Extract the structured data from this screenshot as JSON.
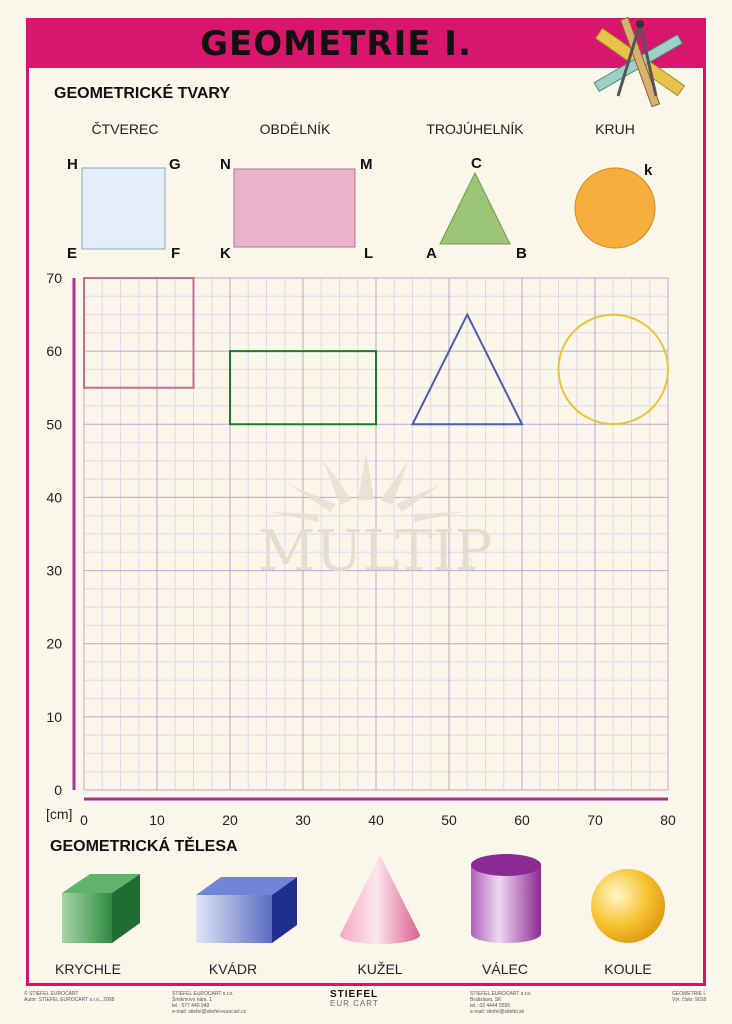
{
  "title": "GEOMETRIE I.",
  "shapes_heading": "GEOMETRICKÉ TVARY",
  "solids_heading": "GEOMETRICKÁ TĚLESA",
  "shape_names": [
    "ČTVEREC",
    "OBDÉLNÍK",
    "TROJÚHELNÍK",
    "KRUH"
  ],
  "vertices": {
    "square": [
      "H",
      "G",
      "E",
      "F"
    ],
    "rectangle": [
      "N",
      "M",
      "K",
      "L"
    ],
    "triangle": [
      "C",
      "A",
      "B"
    ],
    "circle": "k"
  },
  "solid_names": [
    "KRYCHLE",
    "KVÁDR",
    "KUŽEL",
    "VÁLEC",
    "KOULE"
  ],
  "watermark": "MULTIP",
  "watermark_mark": "®",
  "unit": "[cm]",
  "y_ticks": [
    "70",
    "60",
    "50",
    "40",
    "30",
    "20",
    "10",
    "0"
  ],
  "x_ticks": [
    "0",
    "10",
    "20",
    "30",
    "40",
    "50",
    "60",
    "70",
    "80"
  ],
  "chart_data": {
    "type": "scatter",
    "xlim": [
      0,
      80
    ],
    "ylim": [
      0,
      70
    ],
    "grid": true,
    "xlabel": "[cm]",
    "figures": [
      {
        "shape": "square",
        "points": [
          [
            0,
            70
          ],
          [
            15,
            70
          ],
          [
            15,
            55
          ],
          [
            0,
            55
          ]
        ],
        "color": "#c96a8e"
      },
      {
        "shape": "rectangle",
        "points": [
          [
            20,
            60
          ],
          [
            40,
            60
          ],
          [
            40,
            50
          ],
          [
            20,
            50
          ]
        ],
        "color": "#1c7a2c"
      },
      {
        "shape": "triangle",
        "points": [
          [
            45,
            50
          ],
          [
            60,
            50
          ],
          [
            52.5,
            65
          ]
        ],
        "color": "#4a5bb0"
      },
      {
        "shape": "circle",
        "center": [
          72.5,
          57.5
        ],
        "radius": 7.5,
        "color": "#e8c43a"
      }
    ]
  },
  "colors": {
    "banner": "#d9156e",
    "frame": "#d4166b",
    "axis": "#a83592",
    "grid_major": "#bba8cc",
    "grid_minor": "#e2d8e6"
  },
  "footer": {
    "left": [
      "© STIEFEL EUROCART",
      "Autor: STIEFEL EUROCART s.r.o., 2008"
    ],
    "center_left": [
      "STIEFEL EUROCART s.r.o.",
      "Šmikmovo nám. 1",
      "tel.: 577 440 940",
      "e-mail: stiefel@stiefel-eurocart.cz"
    ],
    "brand": "STIEFEL",
    "brand_sub": "EUR CART",
    "center_right": [
      "STIEFEL EUROCART s.r.o.",
      "Bratislava, SK",
      "tel.: 02 4444 5555",
      "e-mail: stiefel@stiefel.sk"
    ],
    "right": [
      "GEOMETRIE I.",
      "Výr. číslo: 9018"
    ]
  }
}
